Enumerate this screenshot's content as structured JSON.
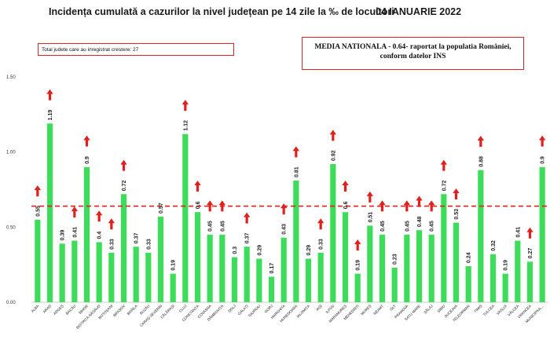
{
  "header": {
    "title": "Incidența cumulată a cazurilor la nivel județean pe 14 zile la ‰ de locuitori",
    "date": "04 IANUARIE 2022"
  },
  "info_left": "Total judete care au inregistrat crestere: 27",
  "info_right": {
    "line1": "MEDIA NATIONALA - 0.64-  raportat la populatia României,",
    "line2": "conform datelor INS"
  },
  "colors": {
    "bar": "#3ddc5a",
    "average_line": "#e0201c",
    "arrow": "#e0201c"
  },
  "chart_data": {
    "type": "bar",
    "categories": [
      "ALBA",
      "ARAD",
      "ARGEȘ",
      "BACĂU",
      "BIHOR",
      "BISTRIȚA-NĂSĂUD",
      "BOTOȘANI",
      "BRAȘOV",
      "BRĂILA",
      "BUZĂU",
      "CARAȘ-SEVERIN",
      "CĂLĂRAȘI",
      "CLUJ",
      "CONSTANȚA",
      "COVASNA",
      "DÂMBOVIȚA",
      "DOLJ",
      "GALAȚI",
      "GIURGIU",
      "GORJ",
      "HARGHITA",
      "HUNEDOARA",
      "IALOMIȚA",
      "IAȘI",
      "ILFOV",
      "MARAMUREȘ",
      "MEHEDINȚI",
      "MUREȘ",
      "NEAMȚ",
      "OLT",
      "PRAHOVA",
      "SATU MARE",
      "SĂLAJ",
      "SIBIU",
      "SUCEAVA",
      "TELEORMAN",
      "TIMIȘ",
      "TULCEA",
      "VASLUI",
      "VÂLCEA",
      "VRANCEA",
      "MUNICIPIUL..."
    ],
    "values": [
      0.55,
      1.19,
      0.39,
      0.41,
      0.9,
      0.4,
      0.33,
      0.72,
      0.37,
      0.33,
      0.57,
      0.19,
      1.12,
      0.6,
      0.45,
      0.45,
      0.3,
      0.37,
      0.29,
      0.17,
      0.43,
      0.81,
      0.29,
      0.33,
      0.92,
      0.6,
      0.19,
      0.51,
      0.45,
      0.23,
      0.45,
      0.48,
      0.45,
      0.72,
      0.53,
      0.24,
      0.88,
      0.32,
      0.19,
      0.41,
      0.27,
      0.9
    ],
    "value_labels": [
      "0.55",
      "1.19",
      "0.39",
      "0.41",
      "0.9",
      "0.4",
      "0.33",
      "0.72",
      "0.37",
      "0.33",
      "0.57",
      "0.19",
      "1.12",
      "0.6",
      "0.45",
      "0.45",
      "0.3",
      "0.37",
      "0.29",
      "0.17",
      "0.43",
      "0.81",
      "0.29",
      "0.33",
      "0.92",
      "0.6",
      "0.19",
      "0.51",
      "0.45",
      "0.23",
      "0.45",
      "0.48",
      "0.45",
      "0.72",
      "0.53",
      "0.24",
      "0.88",
      "0.32",
      "0.19",
      "0.41",
      "0.27",
      "0.9"
    ],
    "increase": [
      true,
      true,
      false,
      true,
      true,
      true,
      true,
      true,
      false,
      false,
      false,
      false,
      true,
      true,
      true,
      true,
      false,
      true,
      false,
      false,
      true,
      true,
      false,
      true,
      true,
      true,
      true,
      true,
      true,
      false,
      true,
      true,
      true,
      true,
      true,
      false,
      true,
      false,
      false,
      false,
      true,
      true
    ],
    "average": 0.64,
    "yticks": [
      "0.00",
      "0.50",
      "1.00",
      "1.50"
    ],
    "ylim": [
      0,
      1.5
    ],
    "grid": false
  }
}
